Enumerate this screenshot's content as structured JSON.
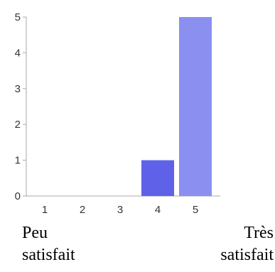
{
  "chart_data": {
    "type": "bar",
    "categories": [
      "1",
      "2",
      "3",
      "4",
      "5"
    ],
    "values": [
      0,
      0,
      0,
      1,
      5
    ],
    "ylim": [
      0,
      5
    ],
    "yticks": [
      "0",
      "1",
      "2",
      "3",
      "4",
      "5"
    ],
    "bar_colors": [
      "#8a8ff0",
      "#8a8ff0",
      "#8a8ff0",
      "#5f62e8",
      "#8a8ff0"
    ],
    "axis_color": "#aaaaaa",
    "grid": false
  },
  "labels": {
    "left_line1": "Peu",
    "left_line2": "satisfait",
    "right_line1": "Très",
    "right_line2": "satisfait"
  }
}
